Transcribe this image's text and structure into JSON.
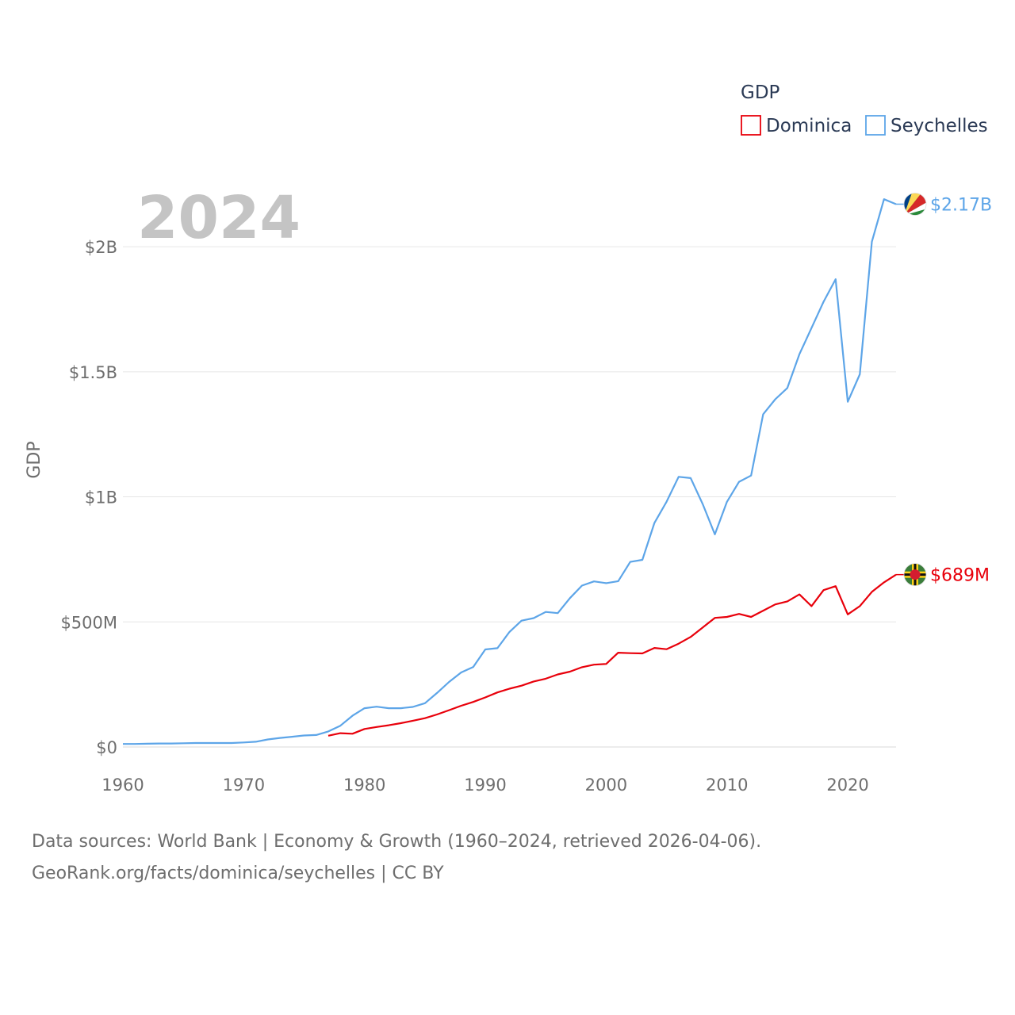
{
  "chart_data": {
    "type": "line",
    "year_label": "2024",
    "ylabel": "GDP",
    "xlim": [
      1960,
      2024
    ],
    "ylim": [
      0,
      2200000000
    ],
    "x_ticks": [
      1960,
      1970,
      1980,
      1990,
      2000,
      2010,
      2020
    ],
    "x_tick_labels": [
      "1960",
      "1970",
      "1980",
      "1990",
      "2000",
      "2010",
      "2020"
    ],
    "y_ticks": [
      0,
      500000000,
      1000000000,
      1500000000,
      2000000000
    ],
    "y_tick_labels": [
      "$0",
      "$500M",
      "$1B",
      "$1.5B",
      "$2B"
    ],
    "grid": true,
    "legend": {
      "title": "GDP",
      "position": "top-right",
      "entries": [
        {
          "name": "Dominica",
          "color": "#e8000b"
        },
        {
          "name": "Seychelles",
          "color": "#5da5e8"
        }
      ]
    },
    "series": [
      {
        "name": "Dominica",
        "color": "#e8000b",
        "end_label": "$689M",
        "x": [
          1977,
          1978,
          1979,
          1980,
          1981,
          1982,
          1983,
          1984,
          1985,
          1986,
          1987,
          1988,
          1989,
          1990,
          1991,
          1992,
          1993,
          1994,
          1995,
          1996,
          1997,
          1998,
          1999,
          2000,
          2001,
          2002,
          2003,
          2004,
          2005,
          2006,
          2007,
          2008,
          2009,
          2010,
          2011,
          2012,
          2013,
          2014,
          2015,
          2016,
          2017,
          2018,
          2019,
          2020,
          2021,
          2022,
          2023,
          2024
        ],
        "values": [
          45000000,
          55000000,
          53000000,
          72000000,
          80000000,
          87000000,
          95000000,
          105000000,
          115000000,
          130000000,
          147000000,
          165000000,
          180000000,
          198000000,
          218000000,
          233000000,
          245000000,
          262000000,
          273000000,
          290000000,
          301000000,
          319000000,
          329000000,
          332000000,
          377000000,
          375000000,
          374000000,
          396000000,
          391000000,
          413000000,
          440000000,
          478000000,
          516000000,
          520000000,
          532000000,
          520000000,
          545000000,
          570000000,
          582000000,
          610000000,
          563000000,
          627000000,
          643000000,
          530000000,
          563000000,
          620000000,
          658000000,
          689000000
        ]
      },
      {
        "name": "Seychelles",
        "color": "#5da5e8",
        "end_label": "$2.17B",
        "x": [
          1960,
          1961,
          1962,
          1963,
          1964,
          1965,
          1966,
          1967,
          1968,
          1969,
          1970,
          1971,
          1972,
          1973,
          1974,
          1975,
          1976,
          1977,
          1978,
          1979,
          1980,
          1981,
          1982,
          1983,
          1984,
          1985,
          1986,
          1987,
          1988,
          1989,
          1990,
          1991,
          1992,
          1993,
          1994,
          1995,
          1996,
          1997,
          1998,
          1999,
          2000,
          2001,
          2002,
          2003,
          2004,
          2005,
          2006,
          2007,
          2008,
          2009,
          2010,
          2011,
          2012,
          2013,
          2014,
          2015,
          2016,
          2017,
          2018,
          2019,
          2020,
          2021,
          2022,
          2023,
          2024
        ],
        "values": [
          12000000,
          12000000,
          13000000,
          14000000,
          14000000,
          15000000,
          16000000,
          16000000,
          16000000,
          16000000,
          18000000,
          21000000,
          30000000,
          36000000,
          41000000,
          46000000,
          48000000,
          62000000,
          85000000,
          125000000,
          155000000,
          161000000,
          155000000,
          155000000,
          160000000,
          175000000,
          216000000,
          260000000,
          298000000,
          320000000,
          390000000,
          395000000,
          460000000,
          505000000,
          515000000,
          540000000,
          535000000,
          595000000,
          645000000,
          662000000,
          655000000,
          663000000,
          740000000,
          748000000,
          896000000,
          980000000,
          1080000000,
          1075000000,
          970000000,
          850000000,
          980000000,
          1060000000,
          1085000000,
          1330000000,
          1390000000,
          1435000000,
          1570000000,
          1675000000,
          1780000000,
          1870000000,
          1380000000,
          1490000000,
          2020000000,
          2190000000,
          2170000000
        ]
      }
    ]
  },
  "footer": {
    "line1": "Data sources: World Bank | Economy & Growth (1960–2024, retrieved 2026-04-06).",
    "line2": "GeoRank.org/facts/dominica/seychelles | CC BY"
  }
}
